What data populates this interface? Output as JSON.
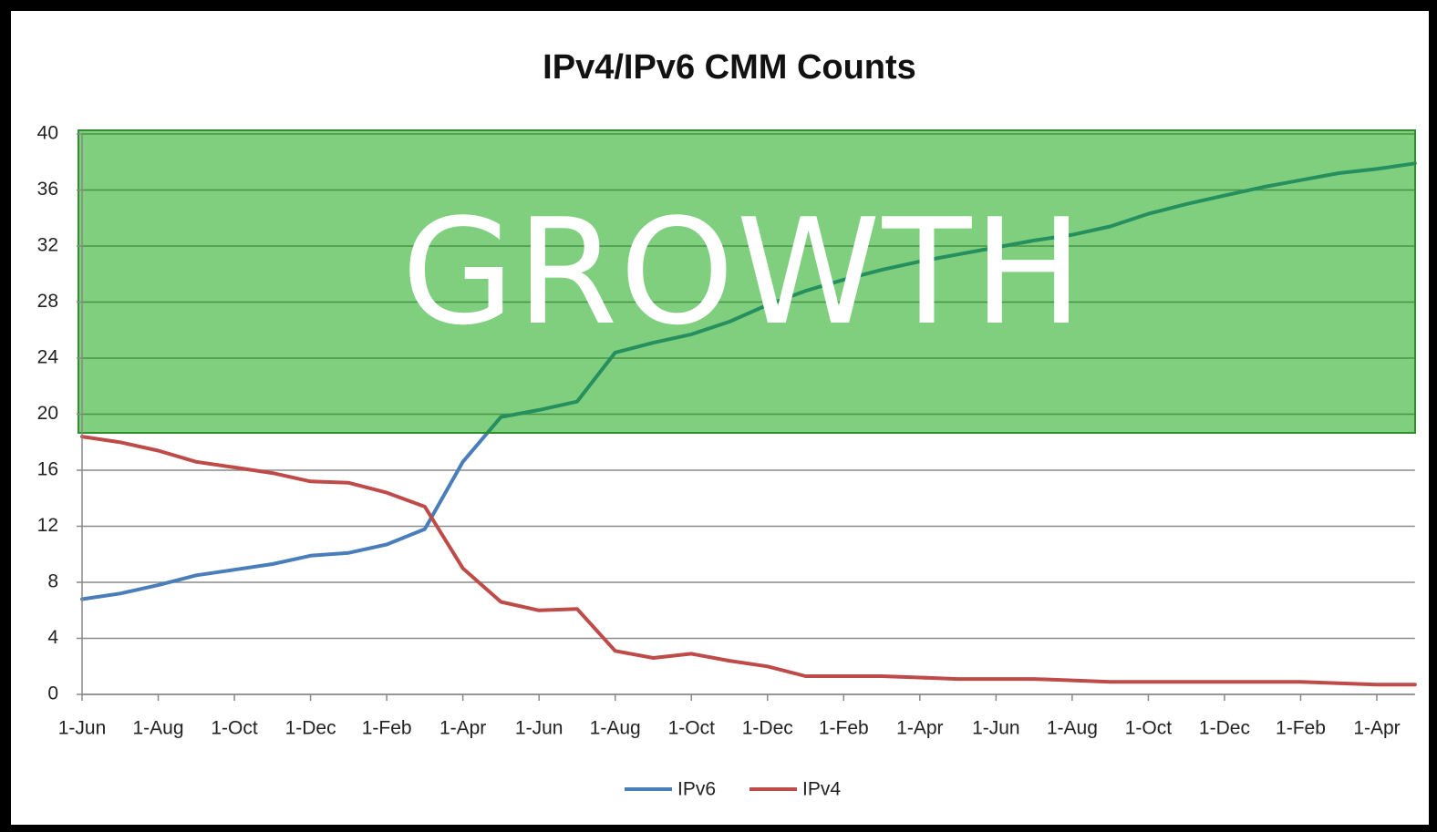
{
  "chart_data": {
    "type": "line",
    "title": "IPv4/IPv6 CMM Counts",
    "annotation": "GROWTH",
    "categories": [
      "1-Jun",
      null,
      "1-Aug",
      null,
      "1-Oct",
      null,
      "1-Dec",
      null,
      "1-Feb",
      null,
      "1-Apr",
      null,
      "1-Jun",
      null,
      "1-Aug",
      null,
      "1-Oct",
      null,
      "1-Dec",
      null,
      "1-Feb",
      null,
      "1-Apr",
      null,
      "1-Jun",
      null,
      "1-Aug",
      null,
      "1-Oct",
      null,
      "1-Dec",
      null,
      "1-Feb",
      null,
      "1-Apr",
      null
    ],
    "series": [
      {
        "name": "IPv6",
        "color": "#4a7ebb",
        "values": [
          6.8,
          7.2,
          7.8,
          8.5,
          8.9,
          9.3,
          9.9,
          10.1,
          10.7,
          11.8,
          16.6,
          19.8,
          20.3,
          20.9,
          24.4,
          25.1,
          25.7,
          26.6,
          27.8,
          28.8,
          29.6,
          30.3,
          30.9,
          31.4,
          31.9,
          32.4,
          32.8,
          33.4,
          34.3,
          35.0,
          35.6,
          36.2,
          36.7,
          37.2,
          37.5,
          37.9
        ]
      },
      {
        "name": "IPv4",
        "color": "#be4b48",
        "values": [
          18.4,
          18.0,
          17.4,
          16.6,
          16.2,
          15.8,
          15.2,
          15.1,
          14.4,
          13.4,
          9.0,
          6.6,
          6.0,
          6.1,
          3.1,
          2.6,
          2.9,
          2.4,
          2.0,
          1.3,
          1.3,
          1.3,
          1.2,
          1.1,
          1.1,
          1.1,
          1.0,
          0.9,
          0.9,
          0.9,
          0.9,
          0.9,
          0.9,
          0.8,
          0.7,
          0.7
        ]
      }
    ],
    "ylim": [
      0,
      40
    ],
    "yticks": [
      0,
      4,
      8,
      12,
      16,
      20,
      24,
      28,
      32,
      36,
      40
    ],
    "grid": true,
    "legend": "bottom"
  }
}
